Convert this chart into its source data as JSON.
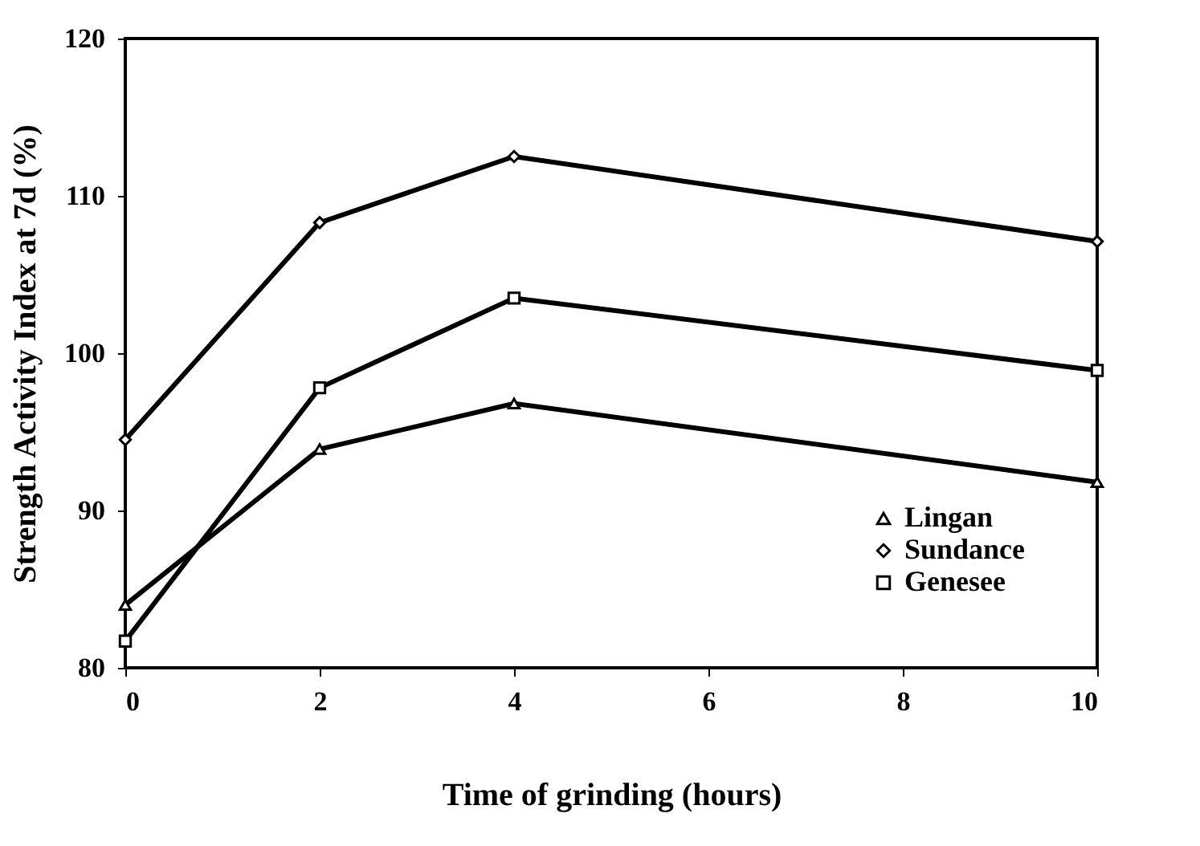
{
  "chart_data": {
    "type": "line",
    "xlabel": "Time of grinding (hours)",
    "ylabel": "Strength Activity Index at 7d (%)",
    "x": [
      0,
      2,
      4,
      10
    ],
    "series": [
      {
        "name": "Lingan",
        "color": "#000000",
        "marker": "triangle",
        "values": [
          84.0,
          93.9,
          96.8,
          91.8
        ]
      },
      {
        "name": "Sundance",
        "color": "#000000",
        "marker": "diamond",
        "values": [
          94.5,
          108.3,
          112.5,
          107.1
        ]
      },
      {
        "name": "Genesee",
        "color": "#000000",
        "marker": "square",
        "values": [
          81.7,
          97.8,
          103.5,
          98.9
        ]
      }
    ],
    "xlim": [
      0,
      10
    ],
    "xticks": [
      0,
      2,
      4,
      6,
      8,
      10
    ],
    "ylim": [
      80,
      120
    ],
    "yticks": [
      80,
      90,
      100,
      110,
      120
    ],
    "grid": false,
    "legend": "bottom right",
    "line_style": "solid"
  }
}
